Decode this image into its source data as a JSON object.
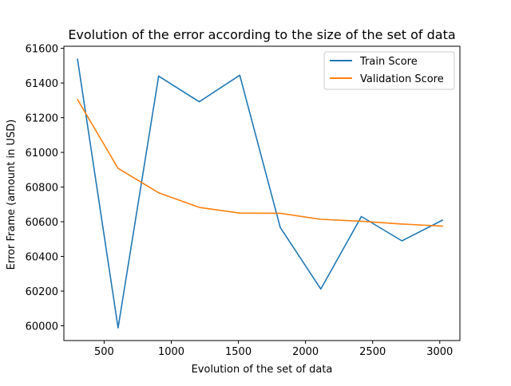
{
  "chart_data": {
    "type": "line",
    "title": "Evolution of the error according to the size of the set of data",
    "xlabel": "Evolution of the set of data",
    "ylabel": "Error Frame (amount in USD)",
    "xlim": [
      200,
      3150
    ],
    "ylim": [
      59915,
      61612
    ],
    "xticks": [
      500,
      1000,
      1500,
      2000,
      2500,
      3000
    ],
    "yticks": [
      60000,
      60200,
      60400,
      60600,
      60800,
      61000,
      61200,
      61400,
      61600
    ],
    "x": [
      302,
      604,
      906,
      1208,
      1510,
      1812,
      2114,
      2416,
      2718,
      3020
    ],
    "series": [
      {
        "name": "Train Score",
        "color": "#1f77b4",
        "values": [
          61537,
          59988,
          61440,
          61292,
          61445,
          60567,
          60212,
          60630,
          60490,
          60609
        ]
      },
      {
        "name": "Validation Score",
        "color": "#ff7f0e",
        "values": [
          61305,
          60908,
          60767,
          60683,
          60650,
          60649,
          60614,
          60603,
          60587,
          60575
        ]
      }
    ],
    "grid": false,
    "legend_position": "top-right"
  }
}
